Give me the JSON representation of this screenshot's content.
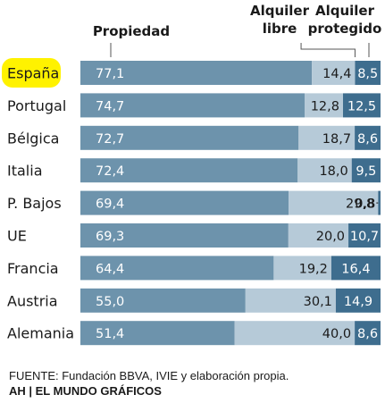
{
  "chart_data": {
    "type": "bar",
    "stacked": true,
    "orientation": "horizontal",
    "highlight_category": "España",
    "categories": [
      "España",
      "Portugal",
      "Bélgica",
      "Italia",
      "P. Bajos",
      "UE",
      "Francia",
      "Austria",
      "Alemania"
    ],
    "series": [
      {
        "name": "Propiedad",
        "color": "#6d93ac",
        "values": [
          77.1,
          74.7,
          72.7,
          72.4,
          69.4,
          69.3,
          64.4,
          55.0,
          51.4
        ],
        "labels": [
          "77,1",
          "74,7",
          "72,7",
          "72,4",
          "69,4",
          "69,3",
          "64,4",
          "55,0",
          "51,4"
        ]
      },
      {
        "name": "Alquiler libre",
        "color": "#b6cad8",
        "values": [
          14.4,
          12.8,
          18.7,
          18.0,
          29.8,
          20.0,
          19.2,
          30.1,
          40.0
        ],
        "labels": [
          "14,4",
          "12,8",
          "18,7",
          "18,0",
          "29,8",
          "20,0",
          "19,2",
          "30,1",
          "40,0"
        ]
      },
      {
        "name": "Alquiler protegido",
        "color": "#3e6d8e",
        "values": [
          8.5,
          12.5,
          8.6,
          9.5,
          0.8,
          10.7,
          16.4,
          14.9,
          8.6
        ],
        "labels": [
          "8,5",
          "12,5",
          "8,6",
          "9,5",
          "0,8",
          "10,7",
          "16,4",
          "14,9",
          "8,6"
        ]
      }
    ],
    "legend_headers": [
      [
        "Propiedad"
      ],
      [
        "Alquiler",
        "libre"
      ],
      [
        "Alquiler",
        "protegido"
      ]
    ],
    "xlim": [
      0,
      100
    ]
  },
  "colors": {
    "highlight": "#fff200",
    "text": "#1a1a1a",
    "light_text": "#ffffff",
    "leader": "#555555"
  },
  "footer": {
    "source": "FUENTE: Fundación BBVA, IVIE y elaboración propia.",
    "credit": "AH | EL MUNDO GRÁFICOS"
  }
}
